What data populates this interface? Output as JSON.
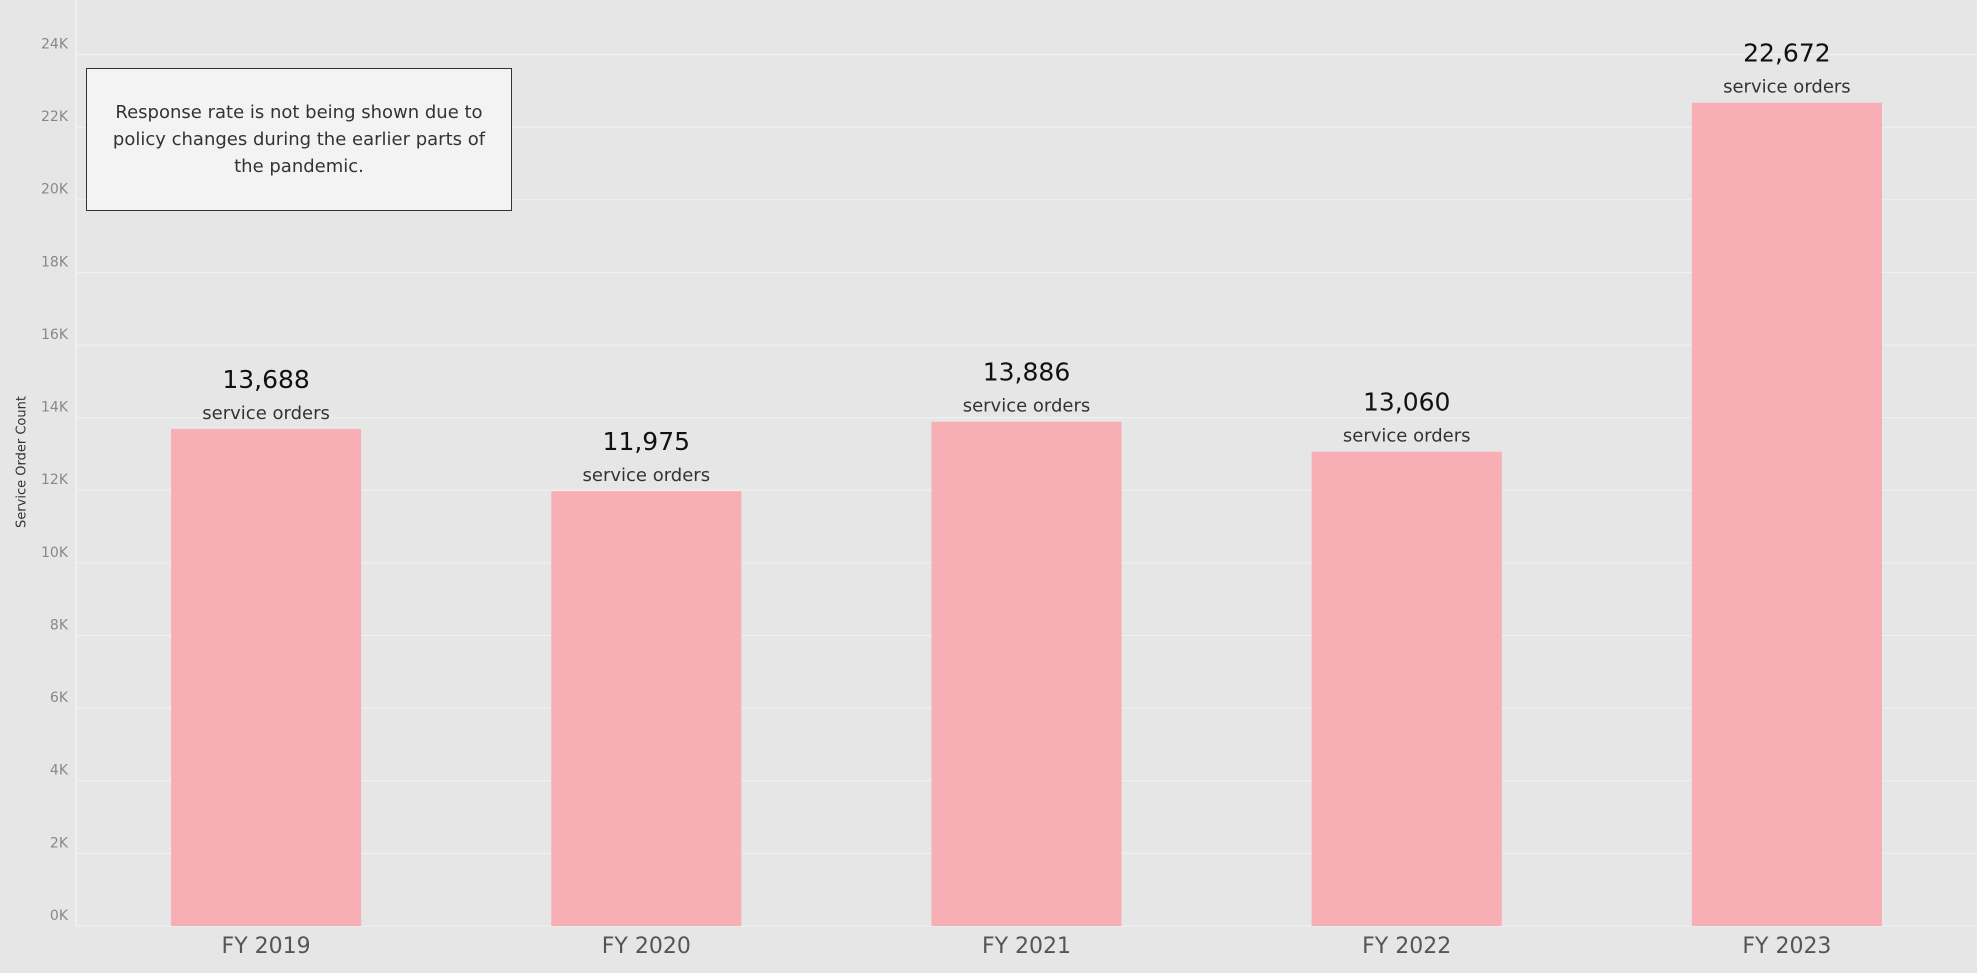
{
  "chart_data": {
    "type": "bar",
    "y_axis_label": "Service Order Count",
    "annotation": "Response rate is not being shown due to policy changes during the earlier parts of the pandemic.",
    "categories": [
      "FY 2019",
      "FY 2020",
      "FY 2021",
      "FY 2022",
      "FY 2023"
    ],
    "values": [
      13688,
      11975,
      13886,
      13060,
      22672
    ],
    "value_labels": [
      "13,688",
      "11,975",
      "13,886",
      "13,060",
      "22,672"
    ],
    "value_unit": "service orders",
    "color": "#f8aeb5",
    "ylim": [
      0,
      25500
    ],
    "yticks": [
      {
        "value": 0,
        "label": "0K"
      },
      {
        "value": 2000,
        "label": "2K"
      },
      {
        "value": 4000,
        "label": "4K"
      },
      {
        "value": 6000,
        "label": "6K"
      },
      {
        "value": 8000,
        "label": "8K"
      },
      {
        "value": 10000,
        "label": "10K"
      },
      {
        "value": 12000,
        "label": "12K"
      },
      {
        "value": 14000,
        "label": "14K"
      },
      {
        "value": 16000,
        "label": "16K"
      },
      {
        "value": 18000,
        "label": "18K"
      },
      {
        "value": 20000,
        "label": "20K"
      },
      {
        "value": 22000,
        "label": "22K"
      },
      {
        "value": 24000,
        "label": "24K"
      }
    ],
    "grid": true
  }
}
